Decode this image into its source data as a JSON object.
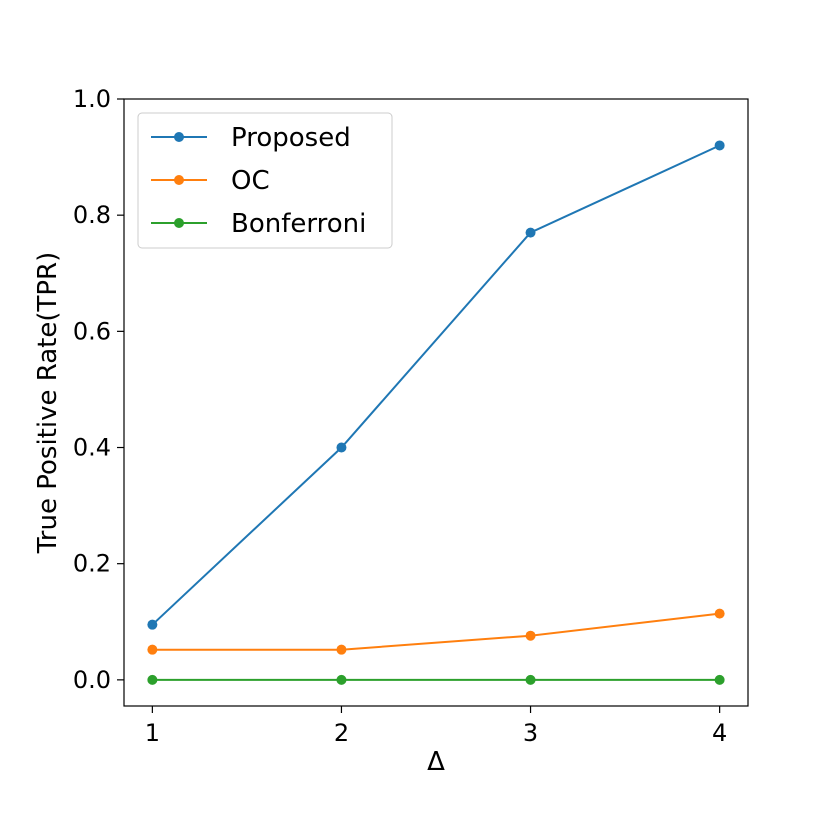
{
  "chart_data": {
    "type": "line",
    "xlabel": "Δ",
    "ylabel": "True Positive Rate(TPR)",
    "x": [
      1,
      2,
      3,
      4
    ],
    "xlim": [
      0.85,
      4.15
    ],
    "ylim": [
      -0.045,
      1.0
    ],
    "xticks": [
      "1",
      "2",
      "3",
      "4"
    ],
    "yticks": [
      "0.0",
      "0.2",
      "0.4",
      "0.6",
      "0.8",
      "1.0"
    ],
    "legend_position": "top-left",
    "grid": false,
    "series": [
      {
        "name": "Proposed",
        "color": "#1f77b4",
        "values": [
          0.095,
          0.4,
          0.77,
          0.92
        ]
      },
      {
        "name": "OC",
        "color": "#ff7f0e",
        "values": [
          0.052,
          0.052,
          0.076,
          0.114
        ]
      },
      {
        "name": "Bonferroni",
        "color": "#2ca02c",
        "values": [
          0.0,
          0.0,
          0.0,
          0.0
        ]
      }
    ]
  }
}
